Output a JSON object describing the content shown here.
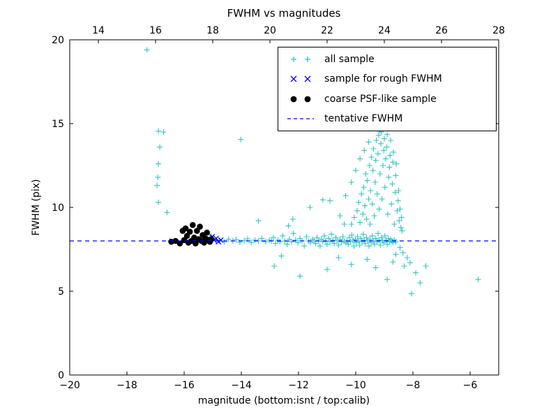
{
  "figure": {
    "title": "FWHM vs magnitudes",
    "xlabel": "magnitude (bottom:isnt / top:calib)",
    "ylabel": "FWHM (pix)",
    "background": "#ffffff"
  },
  "axes": {
    "x_bottom": {
      "range": [
        -20,
        -5
      ],
      "ticks": [
        -20,
        -18,
        -16,
        -14,
        -12,
        -10,
        -8,
        -6
      ]
    },
    "x_top": {
      "range": [
        13,
        28
      ],
      "ticks": [
        14,
        16,
        18,
        20,
        22,
        24,
        26,
        28
      ]
    },
    "y": {
      "range": [
        0,
        20
      ],
      "ticks": [
        0,
        5,
        10,
        15,
        20
      ]
    }
  },
  "legend": {
    "position": "upper right",
    "items": [
      {
        "label": "all sample",
        "marker": "plus",
        "color": "#33c4c4"
      },
      {
        "label": "sample for rough FWHM",
        "marker": "x",
        "color": "#0000ff"
      },
      {
        "label": "coarse PSF-like sample",
        "marker": "circle",
        "color": "#000000"
      },
      {
        "label": "tentative FWHM",
        "marker": "dashed-line",
        "color": "#0000ff"
      }
    ]
  },
  "chart_data": {
    "type": "scatter",
    "title": "FWHM vs magnitudes",
    "xlabel": "magnitude (bottom:isnt / top:calib)",
    "ylabel": "FWHM (pix)",
    "xlim": [
      -20,
      -5
    ],
    "x_top_lim": [
      13,
      28
    ],
    "ylim": [
      0,
      20
    ],
    "grid": false,
    "legend_position": "upper right",
    "tentative_fwhm": 8,
    "series": [
      {
        "name": "all sample",
        "marker": "plus",
        "color": "#33c4c4",
        "points": [
          [
            -17.3,
            19.4
          ],
          [
            -16.9,
            14.55
          ],
          [
            -16.72,
            14.5
          ],
          [
            -16.85,
            13.6
          ],
          [
            -16.9,
            12.6
          ],
          [
            -16.92,
            11.8
          ],
          [
            -16.95,
            11.3
          ],
          [
            -16.9,
            10.3
          ],
          [
            -16.6,
            9.7
          ],
          [
            -16.5,
            8.0
          ],
          [
            -14.02,
            14.05
          ],
          [
            -13.4,
            9.2
          ],
          [
            -15.05,
            8.3
          ],
          [
            -14.9,
            8.0
          ],
          [
            -14.75,
            8.05
          ],
          [
            -14.6,
            7.95
          ],
          [
            -14.45,
            8.1
          ],
          [
            -14.3,
            8.0
          ],
          [
            -14.18,
            8.08
          ],
          [
            -14.05,
            7.92
          ],
          [
            -13.9,
            8.02
          ],
          [
            -13.78,
            8.12
          ],
          [
            -13.65,
            7.9
          ],
          [
            -13.52,
            8.05
          ],
          [
            -13.4,
            8.0
          ],
          [
            -13.28,
            8.15
          ],
          [
            -13.15,
            7.95
          ],
          [
            -13.02,
            8.05
          ],
          [
            -12.95,
            8.0
          ],
          [
            -12.88,
            8.2
          ],
          [
            -12.8,
            7.85
          ],
          [
            -12.72,
            8.05
          ],
          [
            -12.65,
            7.95
          ],
          [
            -12.55,
            8.3
          ],
          [
            -12.48,
            8.0
          ],
          [
            -12.4,
            7.8
          ],
          [
            -12.32,
            8.1
          ],
          [
            -12.25,
            7.95
          ],
          [
            -12.18,
            8.45
          ],
          [
            -12.1,
            8.05
          ],
          [
            -12.02,
            7.9
          ],
          [
            -11.95,
            8.15
          ],
          [
            -11.88,
            8.0
          ],
          [
            -11.8,
            7.7
          ],
          [
            -11.72,
            8.25
          ],
          [
            -11.65,
            8.0
          ],
          [
            -11.58,
            7.9
          ],
          [
            -11.5,
            8.1
          ],
          [
            -12.35,
            8.9
          ],
          [
            -12.2,
            9.3
          ],
          [
            -11.45,
            8.0
          ],
          [
            -11.4,
            7.85
          ],
          [
            -11.35,
            8.2
          ],
          [
            -11.3,
            8.0
          ],
          [
            -11.25,
            7.7
          ],
          [
            -11.2,
            8.1
          ],
          [
            -11.15,
            7.95
          ],
          [
            -11.1,
            8.3
          ],
          [
            -11.05,
            8.0
          ],
          [
            -11.0,
            7.8
          ],
          [
            -10.95,
            8.15
          ],
          [
            -10.9,
            7.95
          ],
          [
            -10.85,
            8.4
          ],
          [
            -10.8,
            8.05
          ],
          [
            -10.75,
            7.85
          ],
          [
            -10.7,
            8.2
          ],
          [
            -10.65,
            8.0
          ],
          [
            -10.6,
            7.75
          ],
          [
            -10.55,
            8.1
          ],
          [
            -10.5,
            7.95
          ],
          [
            -10.45,
            8.25
          ],
          [
            -10.4,
            8.0
          ],
          [
            -10.35,
            7.9
          ],
          [
            -11.6,
            10.0
          ],
          [
            -11.15,
            10.45
          ],
          [
            -10.9,
            10.4
          ],
          [
            -10.55,
            9.5
          ],
          [
            -10.4,
            9.0
          ],
          [
            -10.3,
            8.0
          ],
          [
            -10.26,
            7.8
          ],
          [
            -10.22,
            8.2
          ],
          [
            -10.18,
            7.95
          ],
          [
            -10.14,
            8.35
          ],
          [
            -10.1,
            8.05
          ],
          [
            -10.06,
            7.7
          ],
          [
            -10.02,
            8.1
          ],
          [
            -9.98,
            7.9
          ],
          [
            -9.94,
            8.25
          ],
          [
            -9.9,
            8.0
          ],
          [
            -9.86,
            7.75
          ],
          [
            -9.82,
            8.15
          ],
          [
            -9.78,
            7.95
          ],
          [
            -9.74,
            8.4
          ],
          [
            -9.7,
            8.05
          ],
          [
            -9.66,
            7.85
          ],
          [
            -9.62,
            8.2
          ],
          [
            -9.58,
            8.0
          ],
          [
            -9.54,
            7.7
          ],
          [
            -9.5,
            8.1
          ],
          [
            -9.46,
            7.9
          ],
          [
            -9.42,
            8.3
          ],
          [
            -9.38,
            8.0
          ],
          [
            -9.34,
            7.8
          ],
          [
            -9.3,
            8.15
          ],
          [
            -9.26,
            7.95
          ],
          [
            -9.22,
            8.45
          ],
          [
            -9.18,
            8.05
          ],
          [
            -9.14,
            7.75
          ],
          [
            -9.1,
            8.2
          ],
          [
            -9.06,
            8.0
          ],
          [
            -9.02,
            7.9
          ],
          [
            -8.98,
            8.3
          ],
          [
            -8.94,
            8.05
          ],
          [
            -8.9,
            7.8
          ],
          [
            -8.86,
            8.15
          ],
          [
            -8.82,
            7.95
          ],
          [
            -8.78,
            8.1
          ],
          [
            -8.74,
            8.0
          ],
          [
            -8.7,
            7.9
          ],
          [
            -8.65,
            8.05
          ],
          [
            -8.6,
            7.95
          ],
          [
            -10.35,
            10.7
          ],
          [
            -10.15,
            11.5
          ],
          [
            -10.0,
            12.2
          ],
          [
            -9.85,
            12.9
          ],
          [
            -9.7,
            13.4
          ],
          [
            -9.55,
            13.9
          ],
          [
            -10.15,
            9.0
          ],
          [
            -10.05,
            9.4
          ],
          [
            -9.95,
            9.8
          ],
          [
            -9.9,
            10.3
          ],
          [
            -9.85,
            9.1
          ],
          [
            -9.8,
            10.8
          ],
          [
            -9.75,
            9.6
          ],
          [
            -9.72,
            11.2
          ],
          [
            -9.68,
            10.1
          ],
          [
            -9.65,
            12.0
          ],
          [
            -9.62,
            9.3
          ],
          [
            -9.6,
            11.6
          ],
          [
            -9.55,
            10.5
          ],
          [
            -9.52,
            12.5
          ],
          [
            -9.5,
            9.0
          ],
          [
            -9.48,
            11.0
          ],
          [
            -9.45,
            13.0
          ],
          [
            -9.42,
            10.2
          ],
          [
            -9.4,
            12.2
          ],
          [
            -9.38,
            13.5
          ],
          [
            -9.35,
            9.5
          ],
          [
            -9.32,
            11.5
          ],
          [
            -9.3,
            12.8
          ],
          [
            -9.28,
            14.0
          ],
          [
            -9.25,
            10.8
          ],
          [
            -9.22,
            13.2
          ],
          [
            -9.2,
            14.3
          ],
          [
            -9.18,
            9.9
          ],
          [
            -9.15,
            14.55
          ],
          [
            -9.15,
            12.0
          ],
          [
            -9.12,
            13.8
          ],
          [
            -9.1,
            14.5
          ],
          [
            -9.08,
            10.5
          ],
          [
            -9.05,
            12.5
          ],
          [
            -9.02,
            13.4
          ],
          [
            -9.0,
            14.1
          ],
          [
            -8.98,
            11.2
          ],
          [
            -8.95,
            12.9
          ],
          [
            -8.92,
            13.6
          ],
          [
            -8.9,
            14.35
          ],
          [
            -8.88,
            9.6
          ],
          [
            -8.85,
            11.8
          ],
          [
            -8.82,
            12.4
          ],
          [
            -8.8,
            13.1
          ],
          [
            -8.78,
            14.0
          ],
          [
            -8.75,
            10.2
          ],
          [
            -8.72,
            11.4
          ],
          [
            -8.7,
            12.7
          ],
          [
            -8.68,
            13.3
          ],
          [
            -8.65,
            9.0
          ],
          [
            -8.62,
            10.9
          ],
          [
            -8.6,
            11.9
          ],
          [
            -8.58,
            12.6
          ],
          [
            -8.55,
            9.8
          ],
          [
            -8.52,
            10.4
          ],
          [
            -8.5,
            11.0
          ],
          [
            -8.48,
            9.2
          ],
          [
            -8.45,
            9.9
          ],
          [
            -8.42,
            8.8
          ],
          [
            -8.4,
            9.4
          ],
          [
            -8.38,
            8.6
          ],
          [
            -12.85,
            6.5
          ],
          [
            -12.6,
            7.1
          ],
          [
            -11.95,
            5.9
          ],
          [
            -11.0,
            6.3
          ],
          [
            -10.6,
            7.0
          ],
          [
            -10.15,
            6.6
          ],
          [
            -9.6,
            6.9
          ],
          [
            -9.3,
            6.4
          ],
          [
            -8.9,
            5.7
          ],
          [
            -8.7,
            6.75
          ],
          [
            -8.6,
            7.2
          ],
          [
            -8.45,
            7.6
          ],
          [
            -8.35,
            7.3
          ],
          [
            -8.3,
            6.5
          ],
          [
            -8.2,
            7.0
          ],
          [
            -8.1,
            6.7
          ],
          [
            -8.05,
            4.85
          ],
          [
            -7.9,
            6.1
          ],
          [
            -7.75,
            5.5
          ],
          [
            -7.55,
            6.5
          ],
          [
            -5.72,
            5.7
          ]
        ]
      },
      {
        "name": "sample for rough FWHM",
        "marker": "x",
        "color": "#0000ff",
        "points": [
          [
            -15.02,
            8.25
          ],
          [
            -14.95,
            8.05
          ],
          [
            -14.88,
            8.15
          ],
          [
            -14.8,
            7.95
          ],
          [
            -14.72,
            8.05
          ]
        ]
      },
      {
        "name": "coarse PSF-like sample",
        "marker": "circle",
        "color": "#000000",
        "points": [
          [
            -16.45,
            7.95
          ],
          [
            -16.3,
            8.0
          ],
          [
            -16.15,
            7.85
          ],
          [
            -16.05,
            8.6
          ],
          [
            -16.0,
            8.05
          ],
          [
            -15.95,
            8.75
          ],
          [
            -15.9,
            8.3
          ],
          [
            -15.85,
            7.9
          ],
          [
            -15.8,
            8.55
          ],
          [
            -15.75,
            8.0
          ],
          [
            -15.7,
            8.95
          ],
          [
            -15.65,
            8.2
          ],
          [
            -15.6,
            7.85
          ],
          [
            -15.55,
            8.6
          ],
          [
            -15.5,
            8.1
          ],
          [
            -15.45,
            8.85
          ],
          [
            -15.4,
            8.0
          ],
          [
            -15.35,
            8.35
          ],
          [
            -15.3,
            7.9
          ],
          [
            -15.25,
            8.15
          ],
          [
            -15.2,
            8.5
          ],
          [
            -15.15,
            8.05
          ],
          [
            -15.1,
            7.95
          ],
          [
            -15.05,
            8.1
          ]
        ]
      },
      {
        "name": "tentative FWHM",
        "type": "hline",
        "style": "dashed",
        "color": "#0000ff",
        "y": 8
      }
    ]
  }
}
